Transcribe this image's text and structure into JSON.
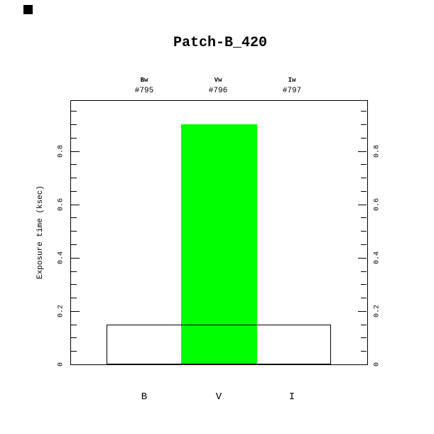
{
  "title": "Patch-B_420",
  "top_axis": {
    "columns": [
      {
        "filter": "Bw",
        "exposure": "#795"
      },
      {
        "filter": "Vw",
        "exposure": "#796"
      },
      {
        "filter": "Iw",
        "exposure": "#797"
      }
    ]
  },
  "y_axis": {
    "label": "Exposure time (ksec)",
    "tick_labels": [
      "0",
      "0.2",
      "0.4",
      "0.6",
      "0.8"
    ]
  },
  "x_axis": {
    "labels": [
      "B",
      "V",
      "I"
    ]
  },
  "chart_data": {
    "type": "bar",
    "title": "Patch-B_420",
    "categories": [
      "B",
      "V",
      "I"
    ],
    "series": [
      {
        "name": "planned-exposure-outline",
        "style": "outline",
        "values": [
          0.15,
          0.15,
          0.15
        ]
      },
      {
        "name": "active-exposure-filled",
        "style": "filled",
        "values": [
          null,
          0.9,
          null
        ]
      }
    ],
    "filters": [
      "Bw",
      "Vw",
      "Iw"
    ],
    "exposure_ids": [
      "#795",
      "#796",
      "#797"
    ],
    "xlabel": "",
    "ylabel": "Exposure time (ksec)",
    "ylim": [
      0,
      0.99
    ],
    "yticks_major": [
      0.2,
      0.4,
      0.6,
      0.8
    ],
    "ytick_minor_step": 0.05,
    "bar_fill_color": "#00ff00",
    "frame_color": "#000000",
    "background_color": "#ffffff",
    "grid": false,
    "legend": "none"
  }
}
